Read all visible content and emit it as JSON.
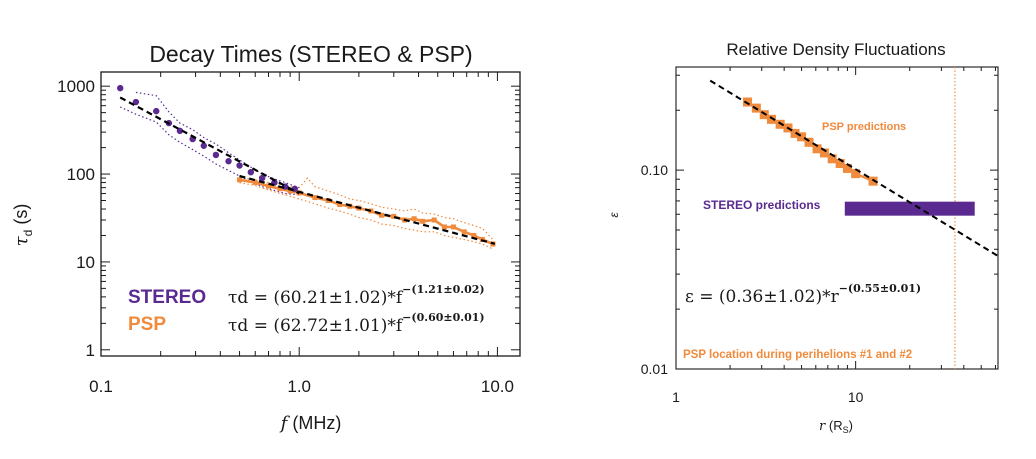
{
  "colors": {
    "stereo": "#5b2a91",
    "psp": "#f08a3c",
    "fit": "#000000",
    "text": "#1a1a1a"
  },
  "chart_data": [
    {
      "type": "scatter",
      "title": "Decay Times (STEREO & PSP)",
      "xlabel": "f (MHz)",
      "ylabel": "τd (s)",
      "xscale": "log",
      "yscale": "log",
      "xlim": [
        0.1,
        13
      ],
      "ylim": [
        0.85,
        1450
      ],
      "x_ticks": [
        0.1,
        1.0,
        10.0
      ],
      "x_tick_labels": [
        "0.1",
        "1.0",
        "10.0"
      ],
      "y_ticks": [
        1,
        10,
        100,
        1000
      ],
      "y_tick_labels": [
        "1",
        "10",
        "100",
        "1000"
      ],
      "grid": false,
      "legend": {
        "placement": "bottom-left",
        "labels": [
          "STEREO",
          "PSP"
        ]
      },
      "equations": [
        {
          "lhs": "τd = (60.21±1.02)*f",
          "exp": "−(1.21±0.02)"
        },
        {
          "lhs": "τd = (62.72±1.01)*f",
          "exp": "−(0.60±0.01)"
        }
      ],
      "series": [
        {
          "name": "STEREO",
          "style": "points",
          "x": [
            0.125,
            0.15,
            0.19,
            0.22,
            0.25,
            0.29,
            0.33,
            0.38,
            0.44,
            0.5,
            0.57,
            0.65,
            0.75,
            0.85,
            0.95
          ],
          "y": [
            950,
            660,
            520,
            380,
            310,
            250,
            210,
            165,
            140,
            125,
            105,
            90,
            80,
            72,
            68
          ]
        },
        {
          "name": "STEREO upper",
          "style": "dotted",
          "x": [
            0.15,
            0.19,
            0.22,
            0.25,
            0.29,
            0.33,
            0.38,
            0.44,
            0.5,
            0.57,
            0.65,
            0.75,
            0.85,
            1.0
          ],
          "y": [
            850,
            780,
            510,
            380,
            320,
            260,
            220,
            175,
            145,
            120,
            100,
            88,
            80,
            70
          ]
        },
        {
          "name": "STEREO lower",
          "style": "dotted",
          "x": [
            0.125,
            0.15,
            0.19,
            0.22,
            0.25,
            0.29,
            0.33,
            0.38,
            0.44,
            0.5,
            0.57,
            0.65,
            0.75,
            0.85,
            1.0
          ],
          "y": [
            580,
            480,
            390,
            280,
            230,
            190,
            160,
            130,
            110,
            95,
            82,
            72,
            65,
            60,
            58
          ]
        },
        {
          "name": "PSP",
          "style": "line",
          "x": [
            0.5,
            0.6,
            0.7,
            0.8,
            0.9,
            1.0,
            1.2,
            1.4,
            1.6,
            1.8,
            2.0,
            2.3,
            2.6,
            3.0,
            3.4,
            3.8,
            4.2,
            4.8,
            5.4,
            6.0,
            6.8,
            7.6,
            8.4,
            9.5
          ],
          "y": [
            86,
            80,
            73,
            68,
            64,
            61,
            54,
            50,
            45,
            43,
            41,
            38,
            34,
            33,
            30,
            31,
            29,
            30,
            25,
            25,
            22,
            20,
            18,
            16
          ]
        },
        {
          "name": "PSP upper",
          "style": "dotted",
          "x": [
            0.5,
            0.6,
            0.7,
            0.8,
            0.9,
            1.0,
            1.1,
            1.2,
            1.4,
            1.6,
            1.8,
            2.0,
            2.3,
            2.6,
            3.0,
            3.4,
            3.8,
            4.2,
            4.8,
            5.4,
            6.0,
            6.8,
            7.6,
            8.4,
            9.5
          ],
          "y": [
            92,
            86,
            80,
            76,
            72,
            70,
            90,
            72,
            64,
            58,
            52,
            50,
            46,
            42,
            40,
            38,
            40,
            36,
            35,
            32,
            31,
            28,
            26,
            24,
            18
          ]
        },
        {
          "name": "PSP lower",
          "style": "dotted",
          "x": [
            0.5,
            0.6,
            0.7,
            0.8,
            0.9,
            1.0,
            1.2,
            1.4,
            1.6,
            1.8,
            2.0,
            2.3,
            2.6,
            3.0,
            3.4,
            3.8,
            4.2,
            4.8,
            5.4,
            6.0,
            6.8,
            7.6,
            8.4,
            9.5
          ],
          "y": [
            80,
            74,
            66,
            60,
            56,
            52,
            46,
            41,
            38,
            35,
            32,
            30,
            27,
            26,
            24,
            23,
            22,
            22,
            20,
            19,
            18,
            17,
            16,
            14
          ]
        },
        {
          "name": "STEREO fit",
          "style": "dashed",
          "x": [
            0.125,
            1.0
          ],
          "y": [
            744,
            60.21
          ]
        },
        {
          "name": "PSP fit",
          "style": "dashed",
          "x": [
            0.5,
            9.7
          ],
          "y": [
            95,
            16.1
          ]
        }
      ]
    },
    {
      "type": "scatter",
      "title": "Relative Density Fluctuations",
      "xlabel": "r (RS)",
      "ylabel": "ε",
      "xscale": "log",
      "yscale": "log",
      "xlim": [
        1,
        62
      ],
      "ylim": [
        0.01,
        0.33
      ],
      "x_ticks": [
        1,
        10
      ],
      "x_tick_labels": [
        "1",
        "10"
      ],
      "y_ticks": [
        0.01,
        0.1
      ],
      "y_tick_labels": [
        "0.01",
        "0.10"
      ],
      "grid": false,
      "equation": {
        "lhs": "ε = (0.36±1.02)*r",
        "exp": "−(0.55±0.01)"
      },
      "annotations": [
        "PSP predictions",
        "STEREO predictions",
        "PSP location during perihelions #1 and #2"
      ],
      "psp_perihelion_r": 35.7,
      "stereo_band": {
        "r": [
          8.7,
          46
        ],
        "eps": 0.064
      },
      "series": [
        {
          "name": "PSP predictions",
          "style": "squares",
          "x": [
            2.5,
            2.8,
            3.1,
            3.4,
            3.8,
            4.2,
            4.6,
            5.0,
            5.5,
            6.1,
            6.7,
            7.4,
            8.2,
            9.0,
            10.0,
            12.5
          ],
          "y": [
            0.22,
            0.205,
            0.19,
            0.18,
            0.17,
            0.163,
            0.153,
            0.147,
            0.138,
            0.128,
            0.122,
            0.114,
            0.108,
            0.102,
            0.096,
            0.088
          ]
        },
        {
          "name": "fit",
          "style": "dashed",
          "x": [
            1.55,
            62
          ],
          "y": [
            0.282,
            0.037
          ]
        }
      ]
    }
  ]
}
